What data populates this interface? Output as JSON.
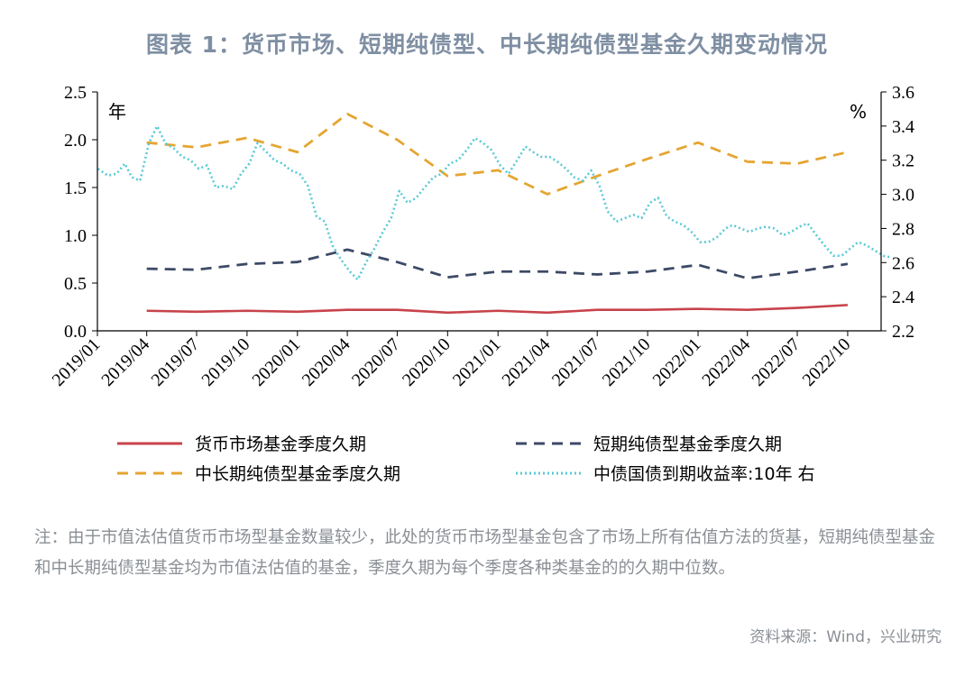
{
  "title": "图表 1：货币市场、短期纯债型、中长期纯债型基金久期变动情况",
  "note": "注：由于市值法估值货币市场型基金数量较少，此处的货币市场型基金包含了市场上所有估值方法的货基，短期纯债型基金和中长期纯债型基金均为市值法估值的基金，季度久期为每个季度各种类基金的的久期中位数。",
  "source": "资料来源：Wind，兴业研究",
  "colors": {
    "money_market": "#c8434b",
    "short_term": "#3d4a66",
    "mid_long": "#e5a531",
    "yield": "#5cc9d6"
  },
  "chart_data": {
    "type": "line",
    "left_axis": {
      "unit_label": "年",
      "ylim": [
        0,
        2.5
      ],
      "ticks": [
        "0.0",
        "0.5",
        "1.0",
        "1.5",
        "2.0",
        "2.5"
      ]
    },
    "right_axis": {
      "unit_label": "%",
      "ylim": [
        2.2,
        3.6
      ],
      "ticks": [
        "2.2",
        "2.4",
        "2.6",
        "2.8",
        "3.0",
        "3.2",
        "3.4",
        "3.6"
      ]
    },
    "x_range": [
      "2019/01",
      "2022/12"
    ],
    "x_ticks": [
      "2019/01",
      "2019/04",
      "2019/07",
      "2019/10",
      "2020/01",
      "2020/04",
      "2020/07",
      "2020/10",
      "2021/01",
      "2021/04",
      "2021/07",
      "2021/10",
      "2022/01",
      "2022/04",
      "2022/07",
      "2022/10"
    ],
    "quarters": [
      "2019/04",
      "2019/07",
      "2019/10",
      "2020/01",
      "2020/04",
      "2020/07",
      "2020/10",
      "2021/01",
      "2021/04",
      "2021/07",
      "2021/10",
      "2022/01",
      "2022/04",
      "2022/07",
      "2022/10"
    ],
    "series": [
      {
        "name": "货币市场基金季度久期",
        "axis": "left",
        "style": "solid",
        "values": [
          0.21,
          0.2,
          0.21,
          0.2,
          0.22,
          0.22,
          0.19,
          0.21,
          0.19,
          0.22,
          0.22,
          0.23,
          0.22,
          0.24,
          0.27
        ]
      },
      {
        "name": "短期纯债型基金季度久期",
        "axis": "left",
        "style": "dashed",
        "values": [
          0.65,
          0.64,
          0.7,
          0.72,
          0.85,
          0.72,
          0.56,
          0.62,
          0.62,
          0.59,
          0.62,
          0.69,
          0.55,
          0.62,
          0.7
        ]
      },
      {
        "name": "中长期纯债型基金季度久期",
        "axis": "left",
        "style": "dashed",
        "values": [
          1.97,
          1.92,
          2.02,
          1.87,
          2.27,
          2.0,
          1.62,
          1.68,
          1.43,
          1.62,
          1.8,
          1.97,
          1.77,
          1.75,
          1.87
        ]
      },
      {
        "name": "中债国债到期收益率:10年 右",
        "axis": "right",
        "style": "dotted",
        "x": [
          "2019/01/02",
          "2019/01/20",
          "2019/02/05",
          "2019/02/20",
          "2019/03/05",
          "2019/03/20",
          "2019/04/05",
          "2019/04/20",
          "2019/05/05",
          "2019/05/20",
          "2019/06/05",
          "2019/06/20",
          "2019/07/05",
          "2019/07/20",
          "2019/08/05",
          "2019/08/20",
          "2019/09/05",
          "2019/09/20",
          "2019/10/05",
          "2019/10/20",
          "2019/11/05",
          "2019/11/20",
          "2019/12/05",
          "2019/12/20",
          "2020/01/05",
          "2020/01/20",
          "2020/02/05",
          "2020/02/20",
          "2020/03/05",
          "2020/03/20",
          "2020/04/05",
          "2020/04/20",
          "2020/05/05",
          "2020/05/20",
          "2020/06/05",
          "2020/06/20",
          "2020/07/05",
          "2020/07/20",
          "2020/08/05",
          "2020/08/20",
          "2020/09/05",
          "2020/09/20",
          "2020/10/05",
          "2020/10/20",
          "2020/11/05",
          "2020/11/20",
          "2020/12/05",
          "2020/12/20",
          "2021/01/05",
          "2021/01/20",
          "2021/02/05",
          "2021/02/20",
          "2021/03/05",
          "2021/03/20",
          "2021/04/05",
          "2021/04/20",
          "2021/05/05",
          "2021/05/20",
          "2021/06/05",
          "2021/06/20",
          "2021/07/05",
          "2021/07/20",
          "2021/08/05",
          "2021/08/20",
          "2021/09/05",
          "2021/09/20",
          "2021/10/05",
          "2021/10/20",
          "2021/11/05",
          "2021/11/20",
          "2021/12/05",
          "2021/12/20",
          "2022/01/05",
          "2022/01/20",
          "2022/02/05",
          "2022/02/20",
          "2022/03/05",
          "2022/03/20",
          "2022/04/05",
          "2022/04/20",
          "2022/05/05",
          "2022/05/20",
          "2022/06/05",
          "2022/06/20",
          "2022/07/05",
          "2022/07/20",
          "2022/08/05",
          "2022/08/20",
          "2022/09/05",
          "2022/09/20",
          "2022/10/05",
          "2022/10/20",
          "2022/11/05",
          "2022/11/20",
          "2022/12/05",
          "2022/12/20"
        ],
        "values": [
          3.15,
          3.11,
          3.12,
          3.18,
          3.1,
          3.08,
          3.3,
          3.4,
          3.3,
          3.27,
          3.22,
          3.2,
          3.15,
          3.17,
          3.04,
          3.05,
          3.03,
          3.12,
          3.18,
          3.3,
          3.25,
          3.2,
          3.18,
          3.14,
          3.12,
          3.05,
          2.87,
          2.84,
          2.7,
          2.62,
          2.55,
          2.5,
          2.6,
          2.68,
          2.78,
          2.86,
          3.02,
          2.95,
          2.98,
          3.04,
          3.1,
          3.12,
          3.18,
          3.2,
          3.26,
          3.33,
          3.3,
          3.26,
          3.17,
          3.12,
          3.2,
          3.28,
          3.25,
          3.22,
          3.22,
          3.19,
          3.15,
          3.1,
          3.08,
          3.14,
          3.05,
          2.9,
          2.84,
          2.86,
          2.88,
          2.86,
          2.95,
          2.98,
          2.87,
          2.84,
          2.82,
          2.78,
          2.72,
          2.72,
          2.75,
          2.8,
          2.82,
          2.8,
          2.78,
          2.8,
          2.81,
          2.8,
          2.76,
          2.78,
          2.81,
          2.83,
          2.76,
          2.7,
          2.64,
          2.64,
          2.68,
          2.72,
          2.7,
          2.67,
          2.64,
          2.63
        ]
      }
    ],
    "legend": "bottom"
  }
}
